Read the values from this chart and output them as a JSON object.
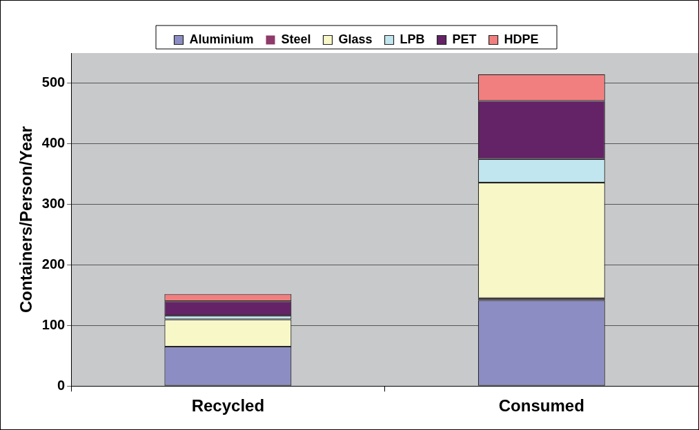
{
  "chart_data": {
    "type": "bar",
    "stacked": true,
    "ylabel": "Containers/Person/Year",
    "categories": [
      "Recycled",
      "Consumed"
    ],
    "series": [
      {
        "name": "Aluminium",
        "color": "#8b8dc3",
        "values": [
          65,
          142
        ]
      },
      {
        "name": "Steel",
        "color": "#8e3a6a",
        "values": [
          0,
          3
        ]
      },
      {
        "name": "Glass",
        "color": "#f8f7c8",
        "values": [
          45,
          191
        ]
      },
      {
        "name": "LPB",
        "color": "#c2e6ef",
        "values": [
          6,
          39
        ]
      },
      {
        "name": "PET",
        "color": "#632366",
        "values": [
          24,
          96
        ]
      },
      {
        "name": "HDPE",
        "color": "#f27f7f",
        "values": [
          12,
          44
        ]
      }
    ],
    "ylim": [
      0,
      550
    ],
    "yticks": [
      0,
      100,
      200,
      300,
      400,
      500
    ],
    "grid": "y",
    "legend": "top"
  }
}
